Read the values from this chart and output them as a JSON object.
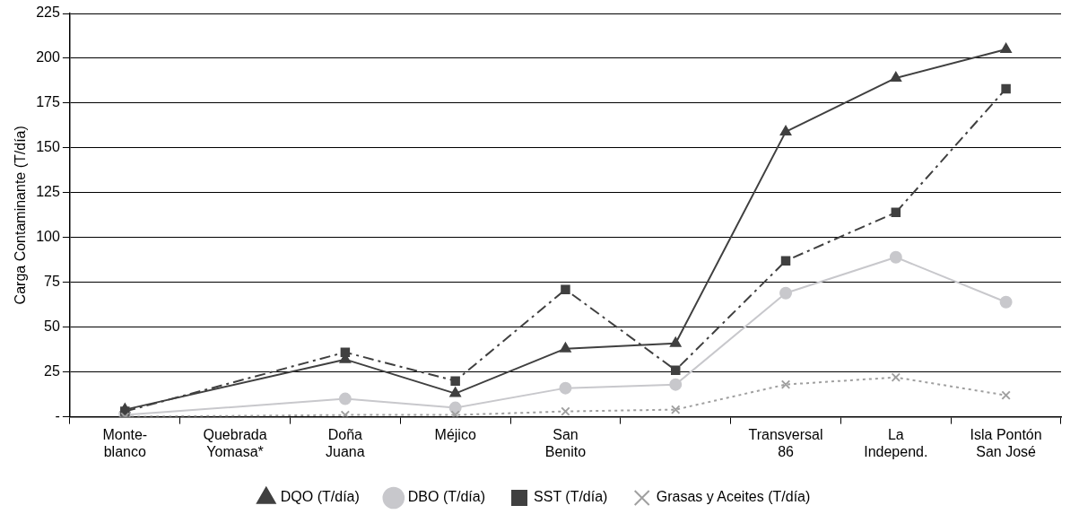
{
  "chart_data": {
    "type": "line",
    "ylabel": "Carga Contaminante (T/día)",
    "categories": [
      "Monte-\nblanco",
      "Quebrada\nYomasa*",
      "Doña\nJuana",
      "Méjico",
      "San\nBenito",
      null,
      "Transversal\n86",
      "La\nIndepend.",
      "Isla Pontón\nSan José"
    ],
    "series": [
      {
        "name": "DQO (T/día)",
        "color": "#404040",
        "marker": "triangle",
        "line_style": "solid",
        "values": [
          4,
          null,
          32,
          13,
          38,
          41,
          159,
          189,
          205
        ]
      },
      {
        "name": "DBO (T/día)",
        "color": "#c8c8cc",
        "marker": "circle",
        "line_style": "solid",
        "values": [
          1,
          null,
          10,
          5,
          16,
          18,
          69,
          89,
          64
        ]
      },
      {
        "name": "SST (T/día)",
        "color": "#404040",
        "marker": "square",
        "line_style": "dashed",
        "values": [
          3,
          null,
          36,
          20,
          71,
          26,
          87,
          114,
          183
        ]
      },
      {
        "name": "Grasas y Aceites (T/día)",
        "color": "#a0a0a0",
        "marker": "cross",
        "line_style": "dotted",
        "values": [
          0,
          null,
          1,
          1,
          3,
          4,
          18,
          22,
          12
        ]
      }
    ],
    "ylim": [
      0,
      225
    ],
    "yticks": [
      {
        "value": 0,
        "label": "-"
      },
      25,
      50,
      75,
      100,
      125,
      150,
      175,
      200,
      225
    ],
    "grid": "y",
    "legend": "bottom"
  }
}
